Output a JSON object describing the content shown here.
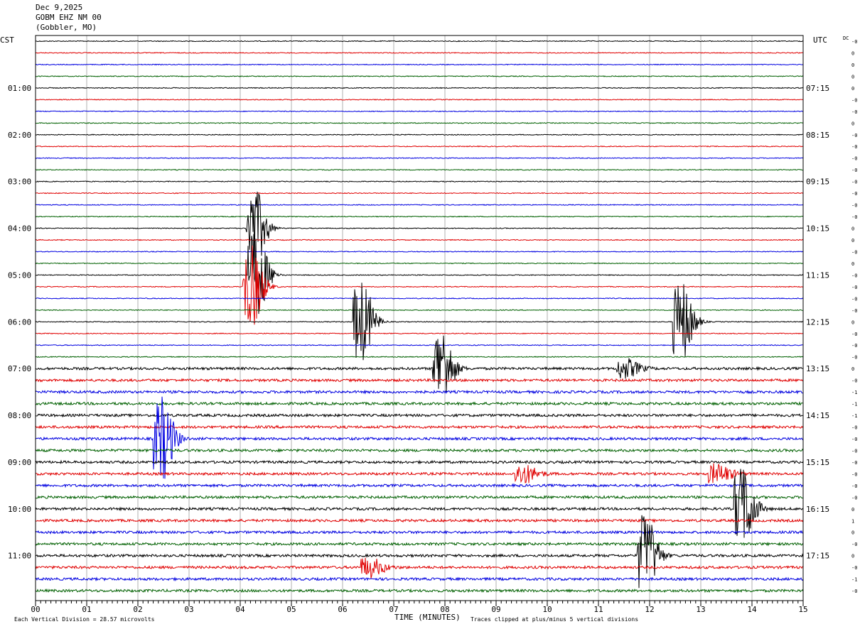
{
  "header": {
    "date": "Dec 9,2025",
    "station": "GOBM EHZ NM 00",
    "location": "(Gobbler, MO)"
  },
  "left_axis_title": "CST",
  "right_axis_title": "UTC",
  "dc_label": "DC",
  "chart_data": {
    "type": "line",
    "title": "",
    "xlabel": "TIME (MINUTES)",
    "x_ticks": [
      "00",
      "01",
      "02",
      "03",
      "04",
      "05",
      "06",
      "07",
      "08",
      "09",
      "10",
      "11",
      "12",
      "13",
      "14",
      "15"
    ],
    "xlim": [
      0,
      15
    ],
    "trace_count": 48,
    "trace_colors": [
      "#000000",
      "#e00000",
      "#0000e0",
      "#006000"
    ],
    "hour_labels_left": [
      "01:00",
      "02:00",
      "03:00",
      "04:00",
      "05:00",
      "06:00",
      "07:00",
      "08:00",
      "09:00",
      "10:00",
      "11:00"
    ],
    "hour_labels_right": [
      "07:15",
      "08:15",
      "09:15",
      "10:15",
      "11:15",
      "12:15",
      "13:15",
      "14:15",
      "15:15",
      "16:15",
      "17:15"
    ],
    "dc_offsets": [
      "-0",
      "0",
      "0",
      "0",
      "0",
      "-0",
      "-0",
      "0",
      "-0",
      "-0",
      "-0",
      "-0",
      "-0",
      "-0",
      "-0",
      "-0",
      "0",
      "0",
      "-0",
      "0",
      "-0",
      "-0",
      "-0",
      "-0",
      "0",
      "-0",
      "-0",
      "-0",
      "0",
      "-0",
      "-1",
      "-1",
      "-1",
      "-0",
      "-0",
      "-0",
      "-0",
      "-0",
      "-0",
      "-0",
      "0",
      "1",
      "0",
      "-0",
      "0",
      "-0",
      "-1",
      "-0"
    ],
    "events": [
      {
        "trace": 16,
        "minute": 4.25,
        "amplitude": "large"
      },
      {
        "trace": 20,
        "minute": 4.3,
        "amplitude": "large"
      },
      {
        "trace": 21,
        "minute": 4.2,
        "amplitude": "large"
      },
      {
        "trace": 24,
        "minute": 6.35,
        "amplitude": "large"
      },
      {
        "trace": 24,
        "minute": 12.6,
        "amplitude": "large"
      },
      {
        "trace": 28,
        "minute": 7.9,
        "amplitude": "large"
      },
      {
        "trace": 28,
        "minute": 11.5,
        "amplitude": "medium"
      },
      {
        "trace": 34,
        "minute": 2.45,
        "amplitude": "large"
      },
      {
        "trace": 37,
        "minute": 9.5,
        "amplitude": "medium"
      },
      {
        "trace": 37,
        "minute": 13.3,
        "amplitude": "medium"
      },
      {
        "trace": 40,
        "minute": 13.8,
        "amplitude": "large"
      },
      {
        "trace": 44,
        "minute": 11.9,
        "amplitude": "large"
      },
      {
        "trace": 45,
        "minute": 6.5,
        "amplitude": "medium"
      }
    ]
  },
  "footer": {
    "scale_text": "Each Vertical Division =   28.57 microvolts",
    "clip_text": "Traces clipped at plus/minus 5 vertical divisions"
  }
}
